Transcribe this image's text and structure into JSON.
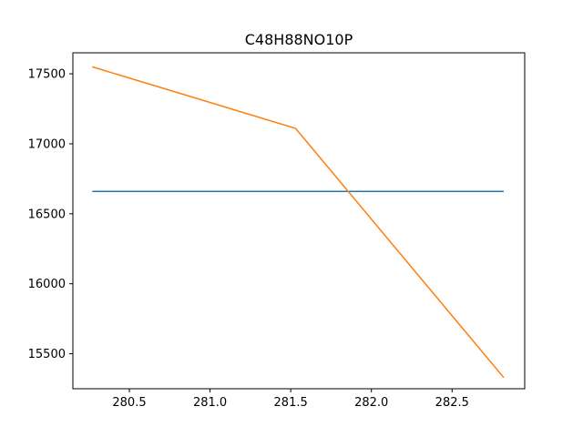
{
  "chart_data": {
    "type": "line",
    "title": "C48H88NO10P",
    "xlabel": "",
    "ylabel": "",
    "xlim": [
      280.15,
      282.95
    ],
    "ylim": [
      15250,
      17650
    ],
    "x_ticks": [
      280.5,
      281.0,
      281.5,
      282.0,
      282.5
    ],
    "x_tick_labels": [
      "280.5",
      "281.0",
      "281.5",
      "282.0",
      "282.5"
    ],
    "y_ticks": [
      15500,
      16000,
      16500,
      17000,
      17500
    ],
    "y_tick_labels": [
      "15500",
      "16000",
      "16500",
      "17000",
      "17500"
    ],
    "grid": false,
    "legend": "none",
    "series": [
      {
        "color": "#1f77b4",
        "points": [
          [
            280.27,
            16660
          ],
          [
            282.82,
            16660
          ]
        ]
      },
      {
        "color": "#ff7f0e",
        "points": [
          [
            280.27,
            17550
          ],
          [
            281.53,
            17110
          ],
          [
            282.82,
            15330
          ]
        ]
      }
    ]
  }
}
